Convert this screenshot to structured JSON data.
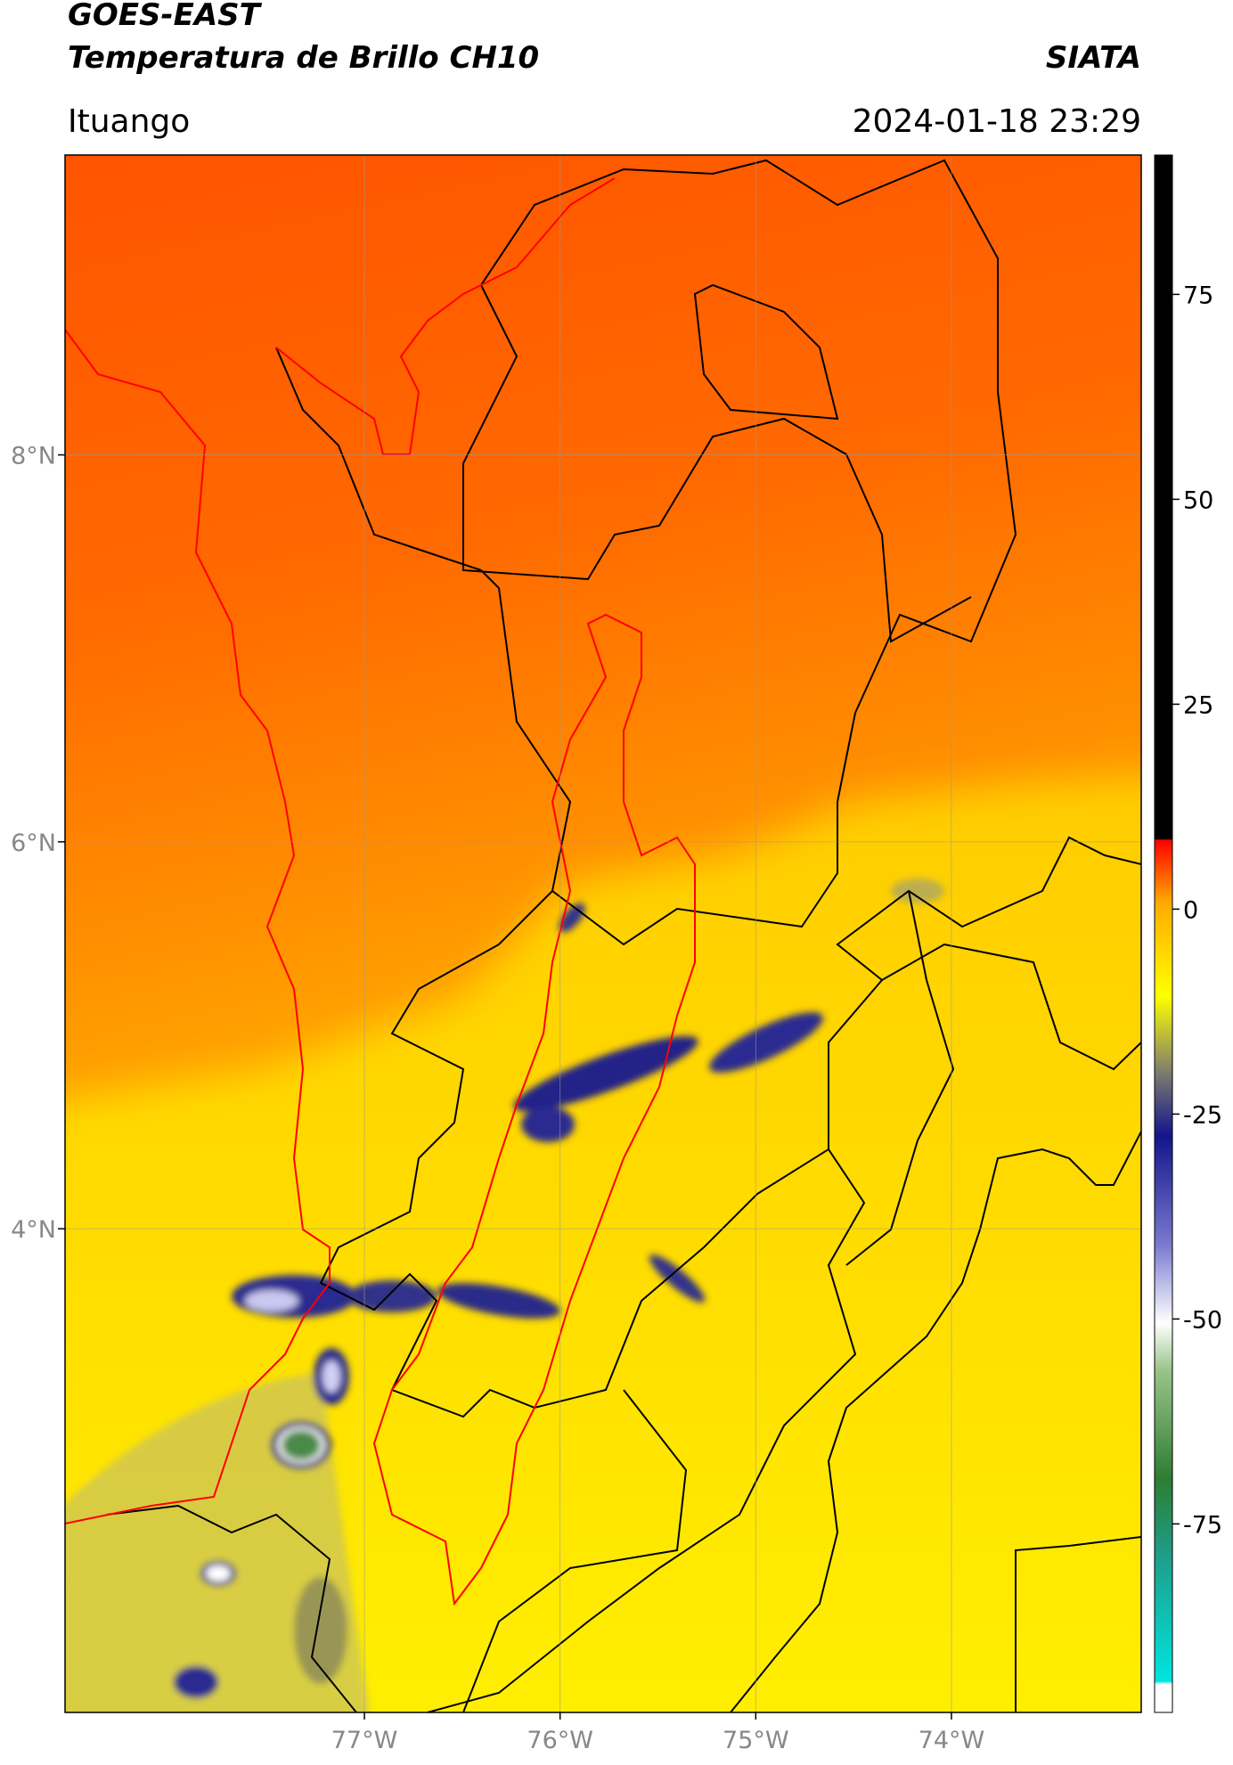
{
  "header": {
    "satellite": "GOES-EAST",
    "product": "Temperatura de Brillo CH10",
    "agency": "SIATA",
    "region": "Ituango",
    "timestamp": "2024-01-18 23:29"
  },
  "map": {
    "xlim": [
      -78.53,
      -73.03
    ],
    "ylim": [
      1.5,
      9.55
    ],
    "grid": true,
    "xticks": [
      {
        "value": -77,
        "label": "77°W"
      },
      {
        "value": -76,
        "label": "76°W"
      },
      {
        "value": -75,
        "label": "75°W"
      },
      {
        "value": -74,
        "label": "74°W"
      }
    ],
    "yticks": [
      {
        "value": 8,
        "label": "8°N"
      },
      {
        "value": 6,
        "label": "6°N"
      },
      {
        "value": 4,
        "label": "4°N"
      }
    ]
  },
  "colorbar": {
    "lim": [
      -98,
      92
    ],
    "ticks": [
      75,
      50,
      25,
      0,
      -25,
      -50,
      -75
    ]
  }
}
